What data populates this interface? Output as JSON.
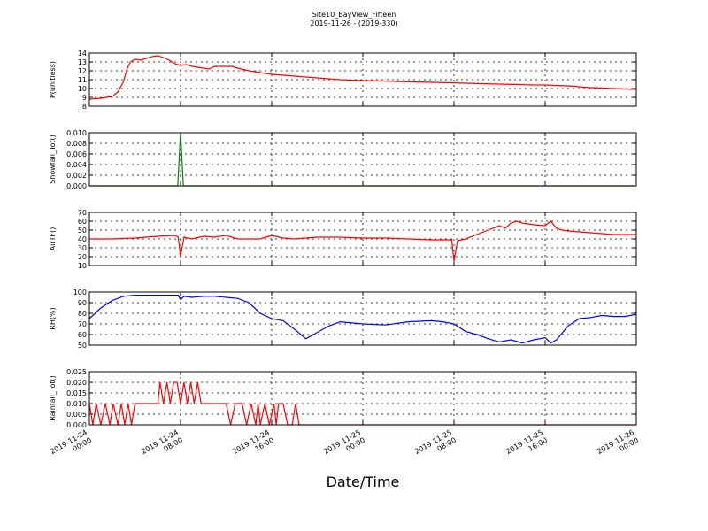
{
  "title": "Site10_BayView_Fifteen",
  "subtitle": "2019-11-26 - (2019-330)",
  "xlabel": "Date/Time",
  "x_tick_labels": [
    [
      "2019-11-24",
      "00:00"
    ],
    [
      "2019-11-24",
      "08:00"
    ],
    [
      "2019-11-24",
      "16:00"
    ],
    [
      "2019-11-25",
      "00:00"
    ],
    [
      "2019-11-25",
      "08:00"
    ],
    [
      "2019-11-25",
      "16:00"
    ],
    [
      "2019-11-26",
      "00:00"
    ]
  ],
  "chart_data": [
    {
      "type": "line",
      "ylabel": "P(unitless)",
      "ylim": [
        8,
        14
      ],
      "yticks": [
        8,
        9,
        10,
        11,
        12,
        13,
        14
      ],
      "ytick_labels": [
        "8",
        "9",
        "10",
        "11",
        "12",
        "13",
        "14"
      ],
      "color": "#ff0000",
      "x_hours": [
        0,
        1,
        2,
        2.5,
        3,
        3.3,
        3.6,
        4,
        4.5,
        5,
        5.5,
        6,
        6.5,
        7,
        7.5,
        8,
        8.5,
        9,
        9.5,
        10,
        10.5,
        11,
        11.5,
        12,
        12.5,
        13,
        14,
        15,
        16,
        18,
        20,
        22,
        24,
        27,
        30,
        33,
        36,
        39,
        40,
        42,
        44,
        46,
        48
      ],
      "values": [
        8.8,
        8.9,
        9.1,
        9.6,
        10.8,
        12.2,
        13.0,
        13.3,
        13.2,
        13.4,
        13.6,
        13.7,
        13.5,
        13.2,
        12.8,
        12.6,
        12.7,
        12.5,
        12.4,
        12.3,
        12.2,
        12.5,
        12.5,
        12.5,
        12.5,
        12.3,
        12.0,
        11.8,
        11.6,
        11.4,
        11.2,
        11.0,
        10.9,
        10.8,
        10.7,
        10.6,
        10.5,
        10.4,
        10.4,
        10.3,
        10.1,
        10.0,
        9.9
      ]
    },
    {
      "type": "line",
      "ylabel": "Snowfall_Tot()",
      "ylim": [
        0,
        0.01
      ],
      "yticks": [
        0,
        0.002,
        0.004,
        0.006,
        0.008,
        0.01
      ],
      "ytick_labels": [
        "0.000",
        "0.002",
        "0.004",
        "0.006",
        "0.008",
        "0.010"
      ],
      "color": "#008000",
      "x_hours": [
        0,
        7.75,
        8.0,
        8.25,
        48
      ],
      "values": [
        0,
        0,
        0.01,
        0,
        0
      ]
    },
    {
      "type": "line",
      "ylabel": "AirTF()",
      "ylim": [
        10,
        70
      ],
      "yticks": [
        10,
        20,
        30,
        40,
        50,
        60,
        70
      ],
      "ytick_labels": [
        "10",
        "20",
        "30",
        "40",
        "50",
        "60",
        "70"
      ],
      "color": "#ff0000",
      "x_hours": [
        0,
        2,
        4,
        6,
        7.5,
        7.8,
        8.0,
        8.3,
        9,
        10,
        11,
        12,
        13,
        14,
        15,
        16,
        17,
        18,
        20,
        22,
        24,
        26,
        28,
        30,
        31,
        31.8,
        32.0,
        32.3,
        33,
        34,
        35,
        36,
        36.5,
        37,
        37.5,
        38,
        39,
        40,
        40.5,
        41,
        41.5,
        42,
        44,
        46,
        48
      ],
      "values": [
        40,
        40,
        41,
        43,
        44,
        42,
        20,
        42,
        40,
        43,
        42,
        44,
        40,
        40,
        40,
        44,
        41,
        40,
        42,
        42,
        41,
        41,
        40,
        39,
        39,
        39,
        15,
        38,
        40,
        45,
        50,
        55,
        52,
        58,
        60,
        58,
        56,
        55,
        60,
        52,
        50,
        49,
        47,
        45,
        45
      ]
    },
    {
      "type": "line",
      "ylabel": "RH(%)",
      "ylim": [
        50,
        100
      ],
      "yticks": [
        50,
        60,
        70,
        80,
        90,
        100
      ],
      "ytick_labels": [
        "50",
        "60",
        "70",
        "80",
        "90",
        "100"
      ],
      "color": "#0000ff",
      "x_hours": [
        0,
        1,
        2,
        3,
        4,
        5,
        6,
        7,
        7.8,
        8.0,
        8.3,
        9,
        10,
        11,
        12,
        13,
        14,
        15,
        16,
        17,
        18,
        19,
        20,
        21,
        22,
        24,
        26,
        28,
        30,
        31,
        32,
        33,
        34,
        35,
        36,
        37,
        38,
        39,
        40,
        40.5,
        41,
        42,
        43,
        44,
        45,
        46,
        47,
        48
      ],
      "values": [
        75,
        85,
        92,
        96,
        97,
        97,
        97,
        97,
        97,
        93,
        96,
        95,
        96,
        96,
        95,
        94,
        90,
        80,
        75,
        73,
        65,
        56,
        62,
        68,
        72,
        70,
        69,
        72,
        73,
        72,
        70,
        63,
        60,
        56,
        53,
        55,
        52,
        55,
        57,
        52,
        55,
        68,
        75,
        76,
        78,
        77,
        77,
        79
      ]
    },
    {
      "type": "line",
      "ylabel": "Rainfall_Tot()",
      "ylim": [
        0,
        0.025
      ],
      "yticks": [
        0,
        0.005,
        0.01,
        0.015,
        0.02,
        0.025
      ],
      "ytick_labels": [
        "0.000",
        "0.005",
        "0.010",
        "0.015",
        "0.020",
        "0.025"
      ],
      "color": "#ff0000",
      "x_hours": [
        0,
        0.3,
        0.6,
        1.0,
        1.4,
        1.8,
        2.1,
        2.5,
        2.8,
        3.1,
        3.4,
        3.7,
        4.0,
        6.0,
        6.2,
        6.5,
        6.8,
        7.1,
        7.4,
        7.7,
        8.0,
        8.3,
        8.6,
        8.9,
        9.2,
        9.5,
        9.8,
        10.1,
        10.4,
        11.0,
        12.0,
        12.4,
        12.8,
        13.4,
        13.8,
        14.2,
        14.6,
        14.8,
        15.0,
        15.4,
        15.8,
        16.2,
        16.4,
        16.6,
        17.0,
        17.4,
        17.8,
        18.1,
        18.4,
        48
      ],
      "values": [
        0.01,
        0.0,
        0.01,
        0.0,
        0.01,
        0.0,
        0.01,
        0.0,
        0.01,
        0.0,
        0.01,
        0.0,
        0.01,
        0.01,
        0.02,
        0.01,
        0.02,
        0.01,
        0.02,
        0.02,
        0.01,
        0.02,
        0.01,
        0.02,
        0.01,
        0.02,
        0.01,
        0.01,
        0.01,
        0.01,
        0.01,
        0.0,
        0.01,
        0.01,
        0.0,
        0.01,
        0.0,
        0.01,
        0.0,
        0.01,
        0.0,
        0.01,
        0.0,
        0.01,
        0.01,
        0.0,
        0.0,
        0.01,
        0.0,
        0.0
      ]
    }
  ]
}
